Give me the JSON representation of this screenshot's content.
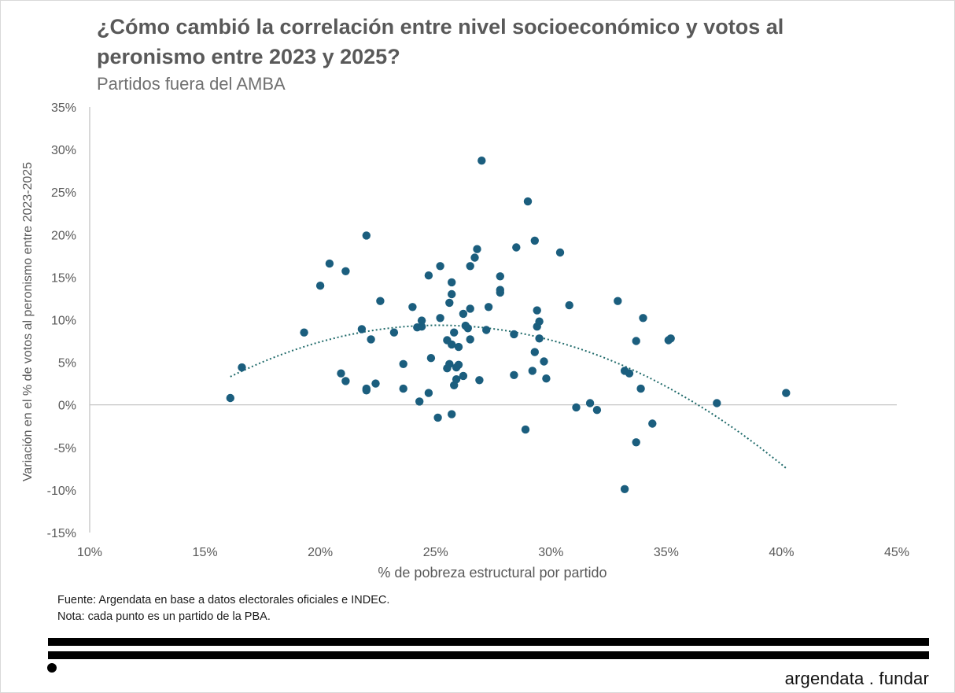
{
  "title": "¿Cómo cambió la correlación entre nivel socioeconómico y votos al peronismo entre 2023 y 2025?",
  "subtitle": "Partidos fuera del AMBA",
  "source_line": "Fuente: Argendata en base a datos electorales oficiales e INDEC.",
  "note_line": "Nota: cada punto es un partido de la PBA.",
  "brand": "argendata . fundar",
  "colors": {
    "points": "#1b5e7e",
    "trend": "#1f6a6a",
    "axis": "#bfbfbf",
    "text": "#595959"
  },
  "chart_data": {
    "type": "scatter",
    "title": "¿Cómo cambió la correlación entre nivel socioeconómico y votos al peronismo entre 2023 y 2025?",
    "subtitle": "Partidos fuera del AMBA",
    "xlabel": "% de pobreza estructural por partido",
    "ylabel": "Variación en el % de votos al peronismo entre 2023-2025",
    "xlim": [
      10,
      45
    ],
    "ylim": [
      -15,
      35
    ],
    "x_ticks": [
      10,
      15,
      20,
      25,
      30,
      35,
      40,
      45
    ],
    "y_ticks": [
      -15,
      -10,
      -5,
      0,
      5,
      10,
      15,
      20,
      25,
      30,
      35
    ],
    "x_tick_labels": [
      "10%",
      "15%",
      "20%",
      "25%",
      "30%",
      "35%",
      "40%",
      "45%"
    ],
    "y_tick_labels": [
      "-15%",
      "-10%",
      "-5%",
      "0%",
      "5%",
      "10%",
      "15%",
      "20%",
      "25%",
      "30%",
      "35%"
    ],
    "grid": false,
    "trendline": {
      "type": "polynomial-2",
      "x_range": [
        16.1,
        40.2
      ],
      "coefficients": [
        -37.4,
        3.72,
        -0.074
      ]
    },
    "points": [
      [
        16.1,
        0.8
      ],
      [
        16.6,
        4.4
      ],
      [
        19.3,
        8.5
      ],
      [
        20.0,
        14.0
      ],
      [
        20.4,
        16.6
      ],
      [
        20.9,
        3.7
      ],
      [
        21.1,
        15.7
      ],
      [
        21.1,
        2.8
      ],
      [
        21.8,
        8.9
      ],
      [
        22.0,
        19.9
      ],
      [
        22.0,
        1.7
      ],
      [
        22.0,
        1.9
      ],
      [
        22.2,
        7.7
      ],
      [
        22.4,
        2.5
      ],
      [
        22.6,
        12.2
      ],
      [
        23.2,
        8.5
      ],
      [
        23.6,
        4.8
      ],
      [
        23.6,
        1.9
      ],
      [
        24.0,
        11.5
      ],
      [
        24.2,
        9.1
      ],
      [
        24.4,
        9.9
      ],
      [
        24.4,
        9.2
      ],
      [
        24.3,
        0.4
      ],
      [
        24.7,
        15.2
      ],
      [
        24.8,
        5.5
      ],
      [
        24.7,
        1.4
      ],
      [
        25.2,
        16.3
      ],
      [
        25.2,
        10.2
      ],
      [
        25.1,
        -1.5
      ],
      [
        25.5,
        4.3
      ],
      [
        25.5,
        7.6
      ],
      [
        25.6,
        12.0
      ],
      [
        25.6,
        4.8
      ],
      [
        25.7,
        13.0
      ],
      [
        25.7,
        14.4
      ],
      [
        25.7,
        7.1
      ],
      [
        25.7,
        -1.1
      ],
      [
        25.8,
        8.5
      ],
      [
        25.9,
        4.4
      ],
      [
        25.8,
        2.3
      ],
      [
        25.9,
        3.0
      ],
      [
        26.0,
        6.8
      ],
      [
        26.0,
        4.7
      ],
      [
        26.2,
        10.7
      ],
      [
        26.2,
        3.4
      ],
      [
        26.3,
        9.3
      ],
      [
        26.4,
        9.0
      ],
      [
        26.5,
        16.3
      ],
      [
        26.5,
        11.3
      ],
      [
        26.5,
        7.7
      ],
      [
        26.7,
        17.3
      ],
      [
        26.8,
        18.3
      ],
      [
        26.9,
        2.9
      ],
      [
        27.0,
        28.7
      ],
      [
        27.2,
        8.8
      ],
      [
        27.3,
        11.5
      ],
      [
        27.8,
        15.1
      ],
      [
        27.8,
        13.5
      ],
      [
        27.8,
        13.2
      ],
      [
        28.4,
        8.3
      ],
      [
        28.4,
        3.5
      ],
      [
        28.5,
        18.5
      ],
      [
        28.9,
        -2.9
      ],
      [
        29.0,
        23.9
      ],
      [
        29.2,
        4.0
      ],
      [
        29.3,
        19.3
      ],
      [
        29.3,
        6.2
      ],
      [
        29.4,
        11.1
      ],
      [
        29.4,
        9.2
      ],
      [
        29.5,
        9.8
      ],
      [
        29.5,
        7.8
      ],
      [
        29.7,
        5.1
      ],
      [
        29.8,
        3.1
      ],
      [
        30.4,
        17.9
      ],
      [
        30.8,
        11.7
      ],
      [
        31.1,
        -0.3
      ],
      [
        31.7,
        0.2
      ],
      [
        32.0,
        -0.6
      ],
      [
        32.9,
        12.2
      ],
      [
        33.2,
        4.0
      ],
      [
        33.4,
        3.7
      ],
      [
        33.2,
        -9.9
      ],
      [
        33.7,
        7.5
      ],
      [
        33.7,
        -4.4
      ],
      [
        33.9,
        1.9
      ],
      [
        34.0,
        10.2
      ],
      [
        34.4,
        -2.2
      ],
      [
        35.1,
        7.6
      ],
      [
        35.2,
        7.8
      ],
      [
        37.2,
        0.2
      ],
      [
        40.2,
        1.4
      ]
    ]
  }
}
